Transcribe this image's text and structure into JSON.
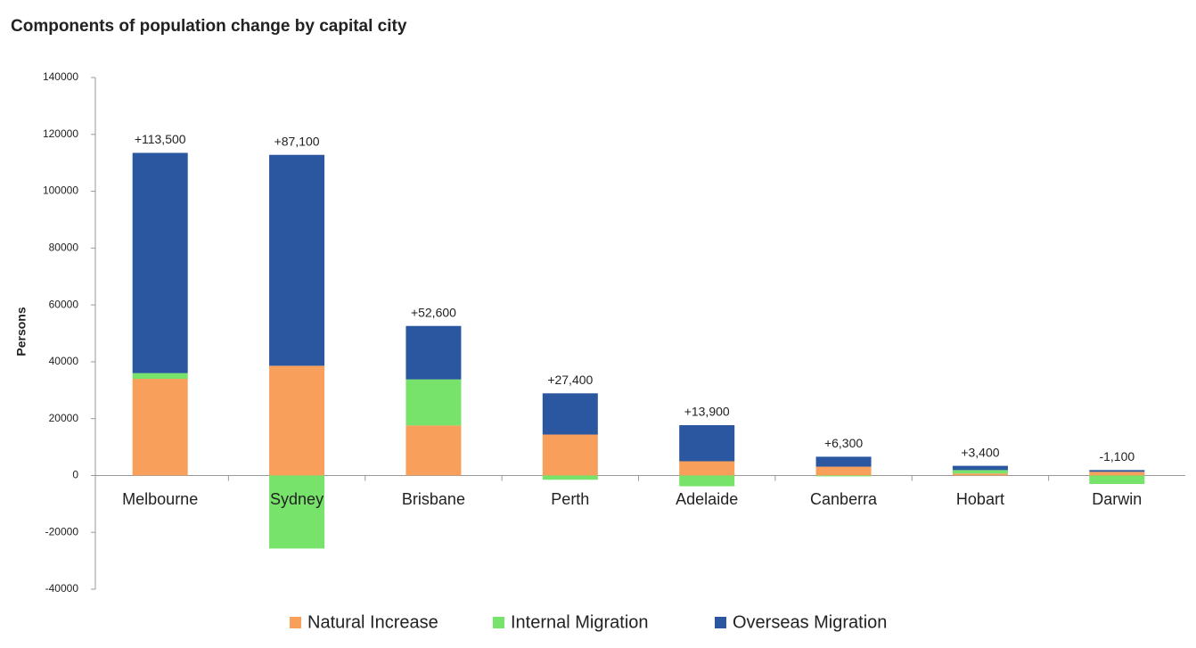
{
  "chart_data": {
    "type": "stacked_bar",
    "title": "Components of population change by capital city",
    "ylabel": "Persons",
    "categories": [
      "Melbourne",
      "Sydney",
      "Brisbane",
      "Perth",
      "Adelaide",
      "Canberra",
      "Hobart",
      "Darwin"
    ],
    "series": [
      {
        "name": "Natural Increase",
        "color": "#f79f5b",
        "values": [
          34000,
          38600,
          17600,
          14400,
          5000,
          3100,
          700,
          1300
        ]
      },
      {
        "name": "Internal Migration",
        "color": "#77e36b",
        "values": [
          2000,
          -25700,
          16200,
          -1500,
          -3800,
          -300,
          1200,
          -3000
        ]
      },
      {
        "name": "Overseas Migration",
        "color": "#2a579f",
        "values": [
          77500,
          74200,
          18800,
          14500,
          12700,
          3500,
          1500,
          600
        ]
      }
    ],
    "totals": [
      113500,
      87100,
      52600,
      27400,
      13900,
      6300,
      3400,
      -1100
    ],
    "total_labels": [
      "+113,500",
      "+87,100",
      "+52,600",
      "+27,400",
      "+13,900",
      "+6,300",
      "+3,400",
      "-1,100"
    ],
    "ylim": [
      -40000,
      140000
    ],
    "yticks": [
      -40000,
      -20000,
      0,
      20000,
      40000,
      60000,
      80000,
      100000,
      120000,
      140000
    ],
    "grid": false,
    "legend": "bottom"
  }
}
